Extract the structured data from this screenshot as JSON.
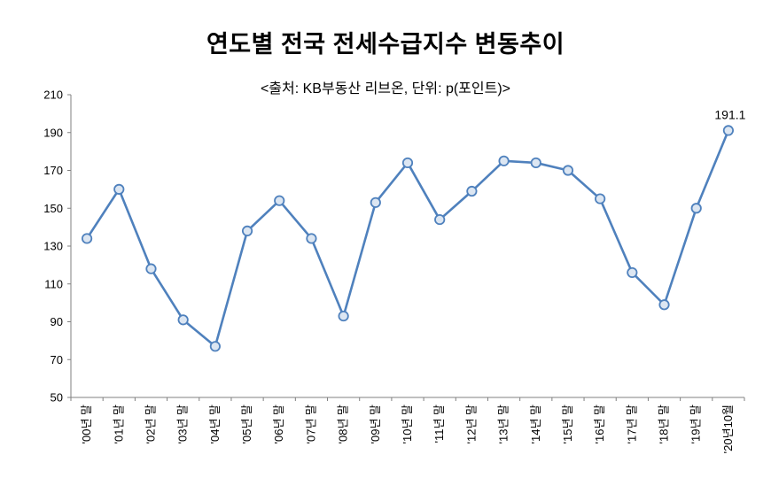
{
  "chart_data": {
    "type": "line",
    "title": "연도별 전국 전세수급지수 변동추이",
    "subtitle": "<출처: KB부동산 리브온, 단위: p(포인트)>",
    "categories": [
      "'00년 말",
      "'01년 말",
      "'02년 말",
      "'03년 말",
      "'04년 말",
      "'05년 말",
      "'06년 말",
      "'07년 말",
      "'08년 말",
      "'09년 말",
      "'10년 말",
      "'11년 말",
      "'12년 말",
      "'13년 말",
      "'14년 말",
      "'15년 말",
      "'16년 말",
      "'17년 말",
      "'18년 말",
      "'19년 말",
      "'20년10월"
    ],
    "series": [
      {
        "name": "전세수급지수",
        "values": [
          134,
          160,
          118,
          91,
          77,
          138,
          154,
          134,
          93,
          153,
          174,
          144,
          159,
          175,
          174,
          170,
          155,
          116,
          99,
          150,
          191.1
        ]
      }
    ],
    "ylim": [
      50,
      210
    ],
    "ytick_step": 20,
    "ytick_labels": [
      "50",
      "70",
      "90",
      "110",
      "130",
      "150",
      "170",
      "190",
      "210"
    ],
    "grid": false,
    "legend": "none",
    "xlabel": "",
    "ylabel": "",
    "last_point_label": "191.1",
    "line_color": "#4F81BD",
    "marker_fill": "#DCE6F2",
    "axis_color": "#808080",
    "label_color": "#000000"
  }
}
